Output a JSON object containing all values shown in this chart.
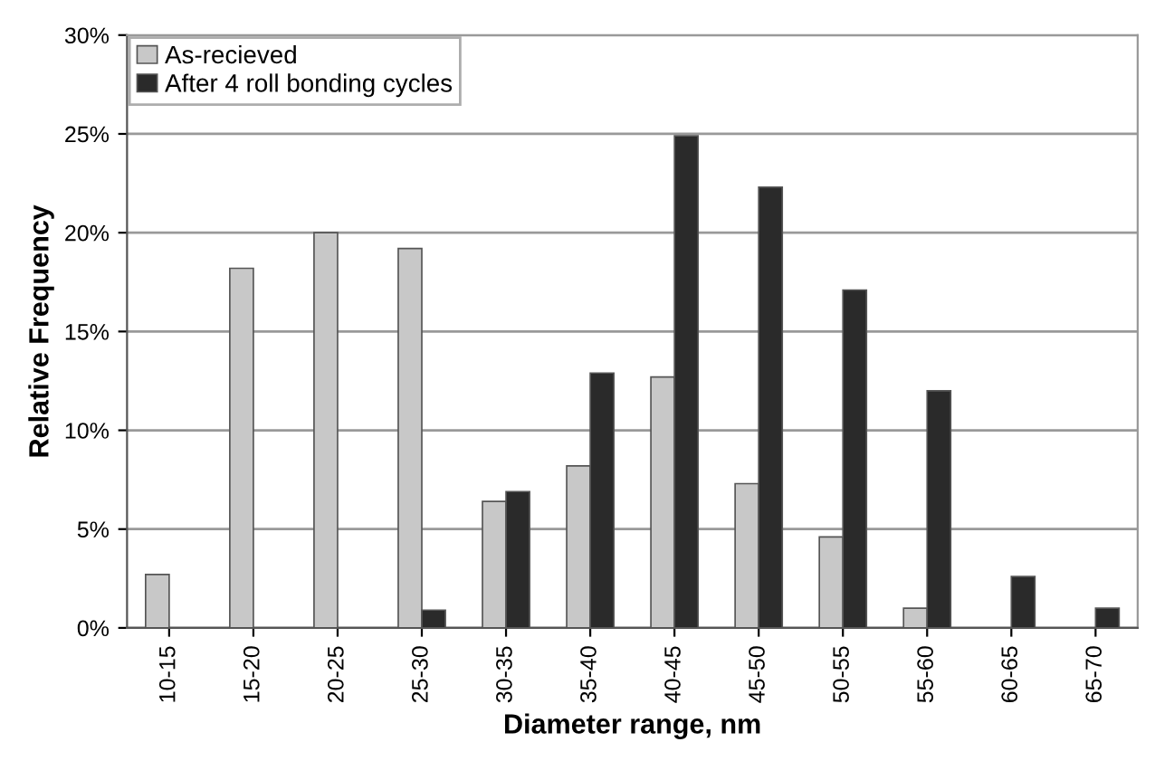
{
  "chart_data": {
    "type": "bar",
    "xlabel": "Diameter range, nm",
    "ylabel": "Relative Frequency",
    "categories": [
      "10-15",
      "15-20",
      "20-25",
      "25-30",
      "30-35",
      "35-40",
      "40-45",
      "45-50",
      "50-55",
      "55-60",
      "60-65",
      "65-70"
    ],
    "series": [
      {
        "name": "As-recieved",
        "color": "#c8c8c8",
        "values": [
          2.7,
          18.2,
          20.0,
          19.2,
          6.4,
          8.2,
          12.7,
          7.3,
          4.6,
          1.0,
          null,
          null
        ]
      },
      {
        "name": "After 4 roll bonding cycles",
        "color": "#2a2a2a",
        "values": [
          null,
          null,
          null,
          0.9,
          6.9,
          12.9,
          24.9,
          22.3,
          17.1,
          12.0,
          2.6,
          1.0
        ]
      }
    ],
    "ylim": [
      0,
      30
    ],
    "yticks": [
      {
        "value": 0,
        "label": "0%"
      },
      {
        "value": 5,
        "label": "5%"
      },
      {
        "value": 10,
        "label": "10%"
      },
      {
        "value": 15,
        "label": "15%"
      },
      {
        "value": 20,
        "label": "20%"
      },
      {
        "value": 25,
        "label": "25%"
      },
      {
        "value": 30,
        "label": "30%"
      }
    ],
    "grid": "y",
    "legend": "top left"
  }
}
